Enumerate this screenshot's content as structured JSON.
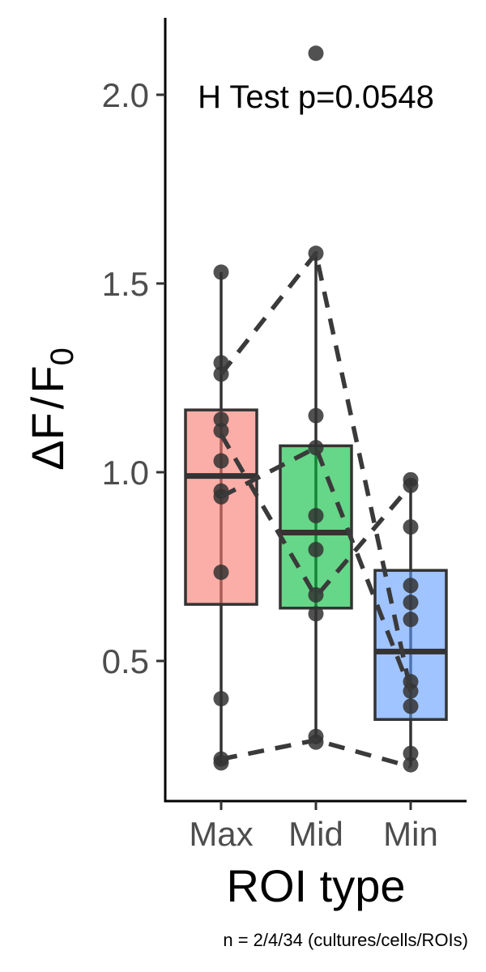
{
  "chart_data": {
    "type": "box",
    "categories": [
      "Max",
      "Mid",
      "Min"
    ],
    "xlabel": "ROI type",
    "ylabel": {
      "base": "ΔF",
      "sep": "/",
      "denom": "F",
      "sub": "0"
    },
    "ylim": [
      0.13,
      2.2
    ],
    "yticks": [
      0.5,
      1.0,
      1.5,
      2.0
    ],
    "ytick_labels": [
      "0.5",
      "1.0",
      "1.5",
      "2.0"
    ],
    "annotation": "H Test p=0.0548",
    "boxes": [
      {
        "category": "Max",
        "color": "#f8766d",
        "whisker_low": 0.23,
        "q1": 0.65,
        "median": 0.99,
        "q3": 1.165,
        "whisker_high": 1.53
      },
      {
        "category": "Mid",
        "color": "#00ba38",
        "whisker_low": 0.28,
        "q1": 0.64,
        "median": 0.84,
        "q3": 1.07,
        "whisker_high": 1.58
      },
      {
        "category": "Min",
        "color": "#619cff",
        "whisker_low": 0.22,
        "q1": 0.345,
        "median": 0.525,
        "q3": 0.74,
        "whisker_high": 0.98
      }
    ],
    "points": [
      {
        "category": "Max",
        "values": [
          1.53,
          1.29,
          1.26,
          1.14,
          1.11,
          1.03,
          0.95,
          0.935,
          0.735,
          0.4,
          0.24,
          0.23
        ]
      },
      {
        "category": "Mid",
        "values": [
          2.11,
          1.58,
          1.15,
          1.065,
          0.885,
          0.795,
          0.675,
          0.625,
          0.3,
          0.285
        ]
      },
      {
        "category": "Min",
        "values": [
          0.98,
          0.965,
          0.855,
          0.7,
          0.655,
          0.61,
          0.445,
          0.42,
          0.38,
          0.255,
          0.225
        ]
      }
    ],
    "paired_lines": [
      [
        1.26,
        1.58,
        0.42
      ],
      [
        1.1,
        0.67,
        0.965
      ],
      [
        0.935,
        1.065,
        0.42
      ],
      [
        0.24,
        0.29,
        0.22
      ]
    ]
  },
  "caption": "n = 2/4/34 (cultures/cells/ROIs)"
}
